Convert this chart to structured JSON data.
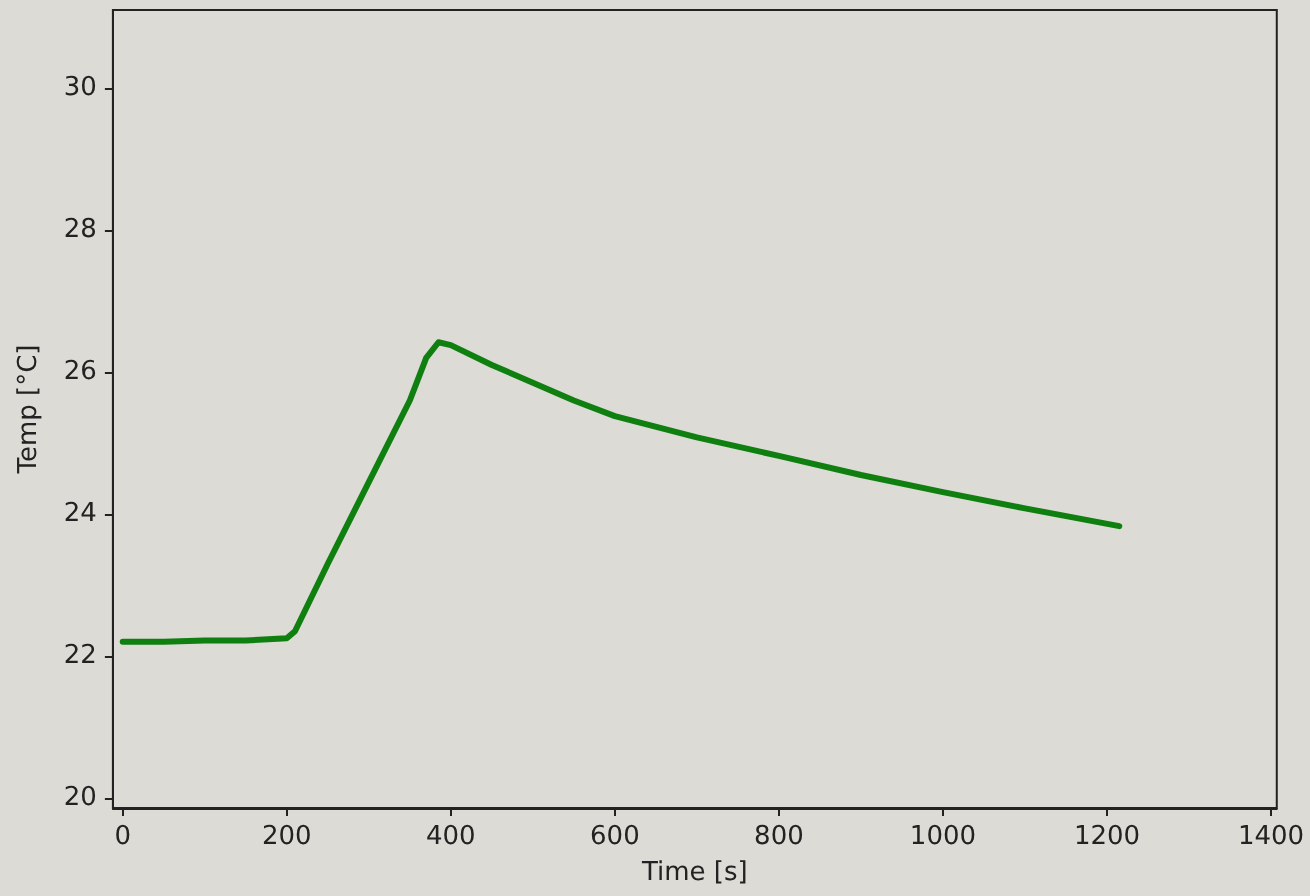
{
  "chart_data": {
    "type": "line",
    "xlabel": "Time [s]",
    "ylabel": "Temp [°C]",
    "x": [
      0,
      50,
      100,
      150,
      200,
      210,
      250,
      300,
      350,
      370,
      385,
      400,
      450,
      500,
      550,
      600,
      700,
      800,
      900,
      1000,
      1100,
      1215
    ],
    "series": [
      {
        "color": "#0f7f0f",
        "values": [
          22.2,
          22.2,
          22.22,
          22.22,
          22.25,
          22.35,
          23.3,
          24.45,
          25.6,
          26.2,
          26.42,
          26.38,
          26.1,
          25.85,
          25.6,
          25.38,
          25.08,
          24.82,
          24.55,
          24.31,
          24.08,
          23.83
        ]
      }
    ],
    "xlim": [
      -12,
      1407
    ],
    "ylim": [
      19.86,
      31.1
    ],
    "xticks": [
      0,
      200,
      400,
      600,
      800,
      1000,
      1200,
      1400
    ],
    "yticks": [
      20,
      22,
      24,
      26,
      28,
      30
    ],
    "grid": false,
    "marker": "none",
    "line_style": "solid"
  }
}
